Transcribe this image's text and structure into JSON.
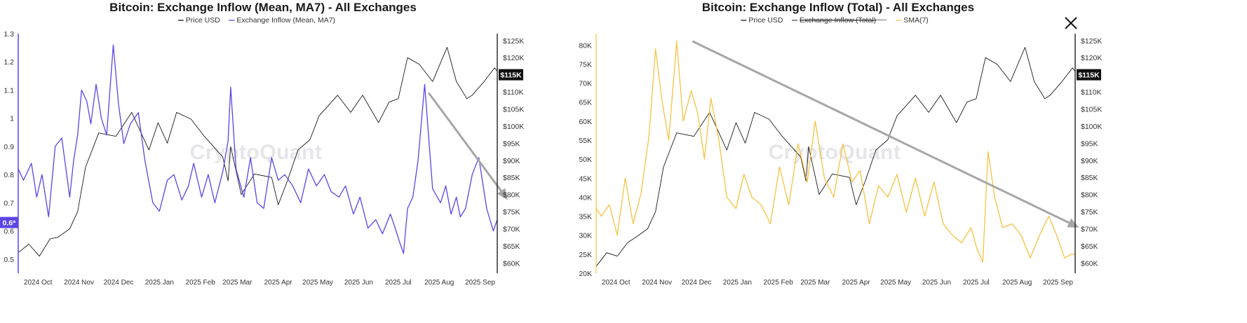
{
  "close_button": {
    "icon": "close-icon"
  },
  "watermark": "CryptoQuant",
  "colors": {
    "price": "#1a1a1a",
    "inflow_mean": "#5b45e6",
    "inflow_total": "#f5c242",
    "sma": "#f5c242",
    "arrow": "#a6a6a6",
    "badge_price": "#111111",
    "badge_inflow": "#5b45e6"
  },
  "chart_data": [
    {
      "type": "line",
      "title": "Bitcoin: Exchange Inflow (Mean, MA7) - All Exchanges",
      "legend": [
        {
          "label": "Price USD",
          "struck": false
        },
        {
          "label": "Exchange Inflow (Mean, MA7)",
          "struck": false
        }
      ],
      "legend_placement": "top-center",
      "x_ticks": [
        "2024 Oct",
        "2024 Nov",
        "2024 Dec",
        "2025 Jan",
        "2025 Feb",
        "2025 Mar",
        "2025 Apr",
        "2025 May",
        "2025 Jun",
        "2025 Jul",
        "2025 Aug",
        "2025 Sep"
      ],
      "x_range": [
        "2024-09-22",
        "2025-09-20"
      ],
      "y_left": {
        "ticks": [
          "0.5",
          "0.6",
          "0.7",
          "0.8",
          "0.9",
          "1",
          "1.1",
          "1.2",
          "1.3"
        ],
        "tick_values": [
          0.5,
          0.6,
          0.7,
          0.8,
          0.9,
          1.0,
          1.1,
          1.2,
          1.3
        ],
        "range": [
          0.45,
          1.3
        ]
      },
      "y_right": {
        "ticks": [
          "$60K",
          "$65K",
          "$70K",
          "$75K",
          "$80K",
          "$85K",
          "$90K",
          "$95K",
          "$100K",
          "$105K",
          "$110K",
          "$115K",
          "$120K",
          "$125K"
        ],
        "tick_values": [
          60000,
          65000,
          70000,
          75000,
          80000,
          85000,
          90000,
          95000,
          100000,
          105000,
          110000,
          115000,
          120000,
          125000
        ],
        "range": [
          57000,
          127000
        ]
      },
      "badges": [
        {
          "label": "$115K",
          "axis": "right",
          "value": 115000,
          "color": "#111111"
        },
        {
          "label": "0.6*",
          "axis": "left",
          "value": 0.63,
          "color": "#5b45e6"
        }
      ],
      "grid": false,
      "series": [
        {
          "name": "Price USD",
          "axis": "right",
          "color": "#1a1a1a",
          "x": [
            "2024-09-22",
            "2024-09-30",
            "2024-10-08",
            "2024-10-16",
            "2024-10-22",
            "2024-10-31",
            "2024-11-06",
            "2024-11-12",
            "2024-11-22",
            "2024-12-05",
            "2024-12-17",
            "2024-12-30",
            "2025-01-06",
            "2025-01-13",
            "2025-01-20",
            "2025-01-31",
            "2025-02-10",
            "2025-02-24",
            "2025-02-28",
            "2025-03-02",
            "2025-03-10",
            "2025-03-20",
            "2025-04-02",
            "2025-04-07",
            "2025-04-14",
            "2025-04-22",
            "2025-05-01",
            "2025-05-08",
            "2025-05-22",
            "2025-06-01",
            "2025-06-10",
            "2025-06-22",
            "2025-06-30",
            "2025-07-07",
            "2025-07-14",
            "2025-07-23",
            "2025-08-02",
            "2025-08-13",
            "2025-08-20",
            "2025-08-28",
            "2025-09-01",
            "2025-09-10",
            "2025-09-18",
            "2025-09-20"
          ],
          "values": [
            63000,
            65500,
            62000,
            67000,
            67500,
            70000,
            75000,
            88000,
            98000,
            97000,
            104000,
            93000,
            101000,
            95000,
            104000,
            102000,
            97000,
            91000,
            84000,
            94000,
            80000,
            86000,
            85000,
            77000,
            84000,
            93000,
            96000,
            103000,
            109000,
            104000,
            109000,
            101000,
            107000,
            108000,
            120000,
            118000,
            113000,
            123000,
            113000,
            108000,
            109000,
            113000,
            117000,
            116000
          ]
        },
        {
          "name": "Exchange Inflow (Mean, MA7)",
          "axis": "left",
          "color": "#5b45e6",
          "x": [
            "2024-09-22",
            "2024-09-26",
            "2024-10-02",
            "2024-10-06",
            "2024-10-10",
            "2024-10-15",
            "2024-10-20",
            "2024-10-25",
            "2024-10-31",
            "2024-11-03",
            "2024-11-06",
            "2024-11-09",
            "2024-11-13",
            "2024-11-16",
            "2024-11-20",
            "2024-11-24",
            "2024-11-28",
            "2024-12-03",
            "2024-12-07",
            "2024-12-11",
            "2024-12-16",
            "2024-12-22",
            "2024-12-27",
            "2025-01-02",
            "2025-01-07",
            "2025-01-13",
            "2025-01-18",
            "2025-01-24",
            "2025-01-29",
            "2025-02-02",
            "2025-02-08",
            "2025-02-13",
            "2025-02-18",
            "2025-02-24",
            "2025-02-28",
            "2025-03-02",
            "2025-03-06",
            "2025-03-12",
            "2025-03-17",
            "2025-03-22",
            "2025-03-27",
            "2025-04-02",
            "2025-04-07",
            "2025-04-12",
            "2025-04-18",
            "2025-04-24",
            "2025-04-30",
            "2025-05-06",
            "2025-05-12",
            "2025-05-17",
            "2025-05-23",
            "2025-05-28",
            "2025-06-03",
            "2025-06-08",
            "2025-06-14",
            "2025-06-20",
            "2025-06-25",
            "2025-07-01",
            "2025-07-04",
            "2025-07-08",
            "2025-07-11",
            "2025-07-14",
            "2025-07-18",
            "2025-07-22",
            "2025-07-27",
            "2025-08-02",
            "2025-08-08",
            "2025-08-12",
            "2025-08-16",
            "2025-08-20",
            "2025-08-23",
            "2025-08-27",
            "2025-09-01",
            "2025-09-06",
            "2025-09-12",
            "2025-09-17",
            "2025-09-20"
          ],
          "values": [
            0.82,
            0.78,
            0.84,
            0.72,
            0.8,
            0.65,
            0.9,
            0.93,
            0.72,
            0.85,
            0.94,
            1.1,
            1.06,
            0.98,
            1.12,
            1.0,
            0.94,
            1.26,
            1.05,
            0.91,
            0.98,
            1.02,
            0.85,
            0.7,
            0.67,
            0.78,
            0.8,
            0.71,
            0.76,
            0.84,
            0.72,
            0.8,
            0.7,
            0.81,
            0.92,
            1.11,
            0.82,
            0.72,
            0.86,
            0.7,
            0.68,
            0.86,
            0.78,
            0.8,
            0.76,
            0.7,
            0.82,
            0.76,
            0.8,
            0.74,
            0.72,
            0.76,
            0.66,
            0.72,
            0.61,
            0.64,
            0.59,
            0.66,
            0.62,
            0.56,
            0.52,
            0.68,
            0.72,
            0.85,
            1.12,
            0.75,
            0.7,
            0.76,
            0.66,
            0.72,
            0.65,
            0.68,
            0.8,
            0.86,
            0.68,
            0.6,
            0.64
          ]
        }
      ],
      "annotations": [
        {
          "type": "arrow",
          "from": [
            "2025-07-30",
            1.09
          ],
          "to": [
            "2025-09-28",
            0.71
          ]
        }
      ]
    },
    {
      "type": "line",
      "title": "Bitcoin: Exchange Inflow (Total) - All Exchanges",
      "legend": [
        {
          "label": "Price USD",
          "struck": false
        },
        {
          "label": "Exchange Inflow (Total)",
          "struck": true
        },
        {
          "label": "SMA(7)",
          "struck": false
        }
      ],
      "legend_placement": "top-center",
      "x_ticks": [
        "2024 Oct",
        "2024 Nov",
        "2024 Dec",
        "2025 Jan",
        "2025 Feb",
        "2025 Mar",
        "2025 Apr",
        "2025 May",
        "2025 Jun",
        "2025 Jul",
        "2025 Aug",
        "2025 Sep"
      ],
      "x_range": [
        "2024-09-22",
        "2025-09-20"
      ],
      "y_left": {
        "ticks": [
          "20K",
          "25K",
          "30K",
          "35K",
          "40K",
          "45K",
          "50K",
          "55K",
          "60K",
          "65K",
          "70K",
          "75K",
          "80K"
        ],
        "tick_values": [
          20000,
          25000,
          30000,
          35000,
          40000,
          45000,
          50000,
          55000,
          60000,
          65000,
          70000,
          75000,
          80000
        ],
        "range": [
          20000,
          83000
        ]
      },
      "y_right": {
        "ticks": [
          "$60K",
          "$65K",
          "$70K",
          "$75K",
          "$80K",
          "$85K",
          "$90K",
          "$95K",
          "$100K",
          "$105K",
          "$110K",
          "$115K",
          "$120K",
          "$125K"
        ],
        "tick_values": [
          60000,
          65000,
          70000,
          75000,
          80000,
          85000,
          90000,
          95000,
          100000,
          105000,
          110000,
          115000,
          120000,
          125000
        ],
        "range": [
          57000,
          127000
        ]
      },
      "badges": [
        {
          "label": "$115K",
          "axis": "right",
          "value": 115000,
          "color": "#111111"
        }
      ],
      "grid": false,
      "series": [
        {
          "name": "Price USD",
          "axis": "right",
          "color": "#1a1a1a",
          "x": [
            "2024-09-22",
            "2024-09-30",
            "2024-10-08",
            "2024-10-16",
            "2024-10-22",
            "2024-10-31",
            "2024-11-06",
            "2024-11-12",
            "2024-11-22",
            "2024-12-05",
            "2024-12-17",
            "2024-12-30",
            "2025-01-06",
            "2025-01-13",
            "2025-01-20",
            "2025-01-31",
            "2025-02-10",
            "2025-02-24",
            "2025-02-28",
            "2025-03-02",
            "2025-03-10",
            "2025-03-20",
            "2025-04-02",
            "2025-04-07",
            "2025-04-14",
            "2025-04-22",
            "2025-05-01",
            "2025-05-08",
            "2025-05-22",
            "2025-06-01",
            "2025-06-10",
            "2025-06-22",
            "2025-06-30",
            "2025-07-07",
            "2025-07-14",
            "2025-07-23",
            "2025-08-02",
            "2025-08-13",
            "2025-08-20",
            "2025-08-28",
            "2025-09-01",
            "2025-09-10",
            "2025-09-18",
            "2025-09-20"
          ],
          "values": [
            59000,
            63000,
            62000,
            66000,
            67500,
            70000,
            75000,
            88000,
            98000,
            97000,
            104000,
            93000,
            101000,
            95000,
            104000,
            102000,
            97000,
            91000,
            84000,
            94000,
            80000,
            86000,
            85000,
            77000,
            84000,
            93000,
            96000,
            103000,
            109000,
            104000,
            109000,
            101000,
            107000,
            108000,
            120000,
            118000,
            113000,
            123000,
            113000,
            108000,
            109000,
            113000,
            117000,
            116000
          ]
        },
        {
          "name": "SMA(7)",
          "axis": "left",
          "color": "#f5c242",
          "x": [
            "2024-09-22",
            "2024-09-26",
            "2024-10-02",
            "2024-10-08",
            "2024-10-14",
            "2024-10-20",
            "2024-10-26",
            "2024-11-01",
            "2024-11-06",
            "2024-11-11",
            "2024-11-16",
            "2024-11-22",
            "2024-11-27",
            "2024-12-03",
            "2024-12-08",
            "2024-12-13",
            "2024-12-18",
            "2024-12-24",
            "2024-12-30",
            "2025-01-06",
            "2025-01-12",
            "2025-01-18",
            "2025-01-25",
            "2025-02-01",
            "2025-02-08",
            "2025-02-15",
            "2025-02-22",
            "2025-03-01",
            "2025-03-07",
            "2025-03-14",
            "2025-03-21",
            "2025-03-28",
            "2025-04-04",
            "2025-04-10",
            "2025-04-17",
            "2025-04-24",
            "2025-05-01",
            "2025-05-08",
            "2025-05-15",
            "2025-05-22",
            "2025-05-29",
            "2025-06-05",
            "2025-06-12",
            "2025-06-19",
            "2025-06-26",
            "2025-07-03",
            "2025-07-08",
            "2025-07-12",
            "2025-07-16",
            "2025-07-21",
            "2025-07-27",
            "2025-08-03",
            "2025-08-10",
            "2025-08-17",
            "2025-08-24",
            "2025-08-31",
            "2025-09-06",
            "2025-09-12",
            "2025-09-17",
            "2025-09-20"
          ],
          "values": [
            37000,
            35000,
            38000,
            30000,
            45000,
            33000,
            41000,
            56000,
            79000,
            65000,
            55000,
            81000,
            60000,
            68000,
            62000,
            50000,
            66000,
            55000,
            40000,
            37000,
            46000,
            40000,
            38000,
            33000,
            48000,
            38000,
            54000,
            44000,
            60000,
            45000,
            40000,
            54000,
            44000,
            47000,
            33000,
            43000,
            40000,
            46000,
            36000,
            45000,
            35000,
            44000,
            33000,
            30000,
            28000,
            32000,
            26000,
            23000,
            52000,
            40000,
            32000,
            33000,
            30000,
            24000,
            30000,
            35000,
            30000,
            24000,
            25000,
            25000
          ]
        }
      ],
      "annotations": [
        {
          "type": "arrow",
          "from": [
            "2024-12-04",
            81000
          ],
          "to": [
            "2025-09-23",
            32000
          ]
        }
      ]
    }
  ]
}
